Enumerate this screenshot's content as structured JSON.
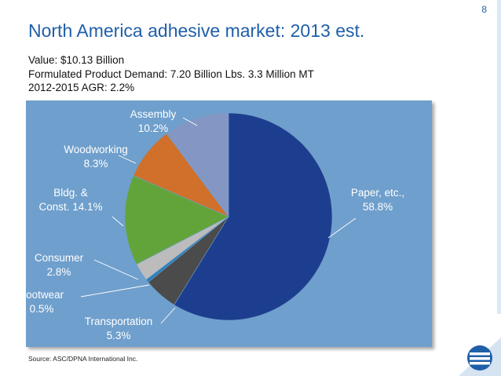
{
  "page_number": "8",
  "title": "North America adhesive market: 2013 est.",
  "info_lines": [
    "Value: $10.13 Billion",
    "Formulated Product Demand: 7.20 Billion Lbs. 3.3 Million MT",
    "2012-2015 AGR: 2.2%"
  ],
  "source": "Source:  ASC/DPNA International Inc.",
  "colors": {
    "title": "#1f5fa8",
    "panel": "#6f9fcc",
    "brand": "#1f5fa8"
  },
  "icons": [
    "company-logo-icon"
  ],
  "chart_data": {
    "type": "pie",
    "title": "",
    "start_angle_deg": 0,
    "direction": "clockwise",
    "slices": [
      {
        "label_lines": [
          "Paper, etc.,",
          "58.8%"
        ],
        "value": 58.8,
        "color": "#1d3e8e"
      },
      {
        "label_lines": [
          "Transportation",
          "5.3%"
        ],
        "value": 5.3,
        "color": "#4b4b4b"
      },
      {
        "label_lines": [
          "Footwear",
          "0.5%"
        ],
        "value": 0.5,
        "color": "#2a7fb8"
      },
      {
        "label_lines": [
          "Consumer",
          "2.8%"
        ],
        "value": 2.8,
        "color": "#bcbcbc"
      },
      {
        "label_lines": [
          "Bldg. &",
          "Const. 14.1%"
        ],
        "value": 14.1,
        "color": "#63a43a"
      },
      {
        "label_lines": [
          "Woodworking",
          "8.3%"
        ],
        "value": 8.3,
        "color": "#d0702a"
      },
      {
        "label_lines": [
          "Assembly",
          "10.2%"
        ],
        "value": 10.2,
        "color": "#8497c4"
      }
    ]
  }
}
